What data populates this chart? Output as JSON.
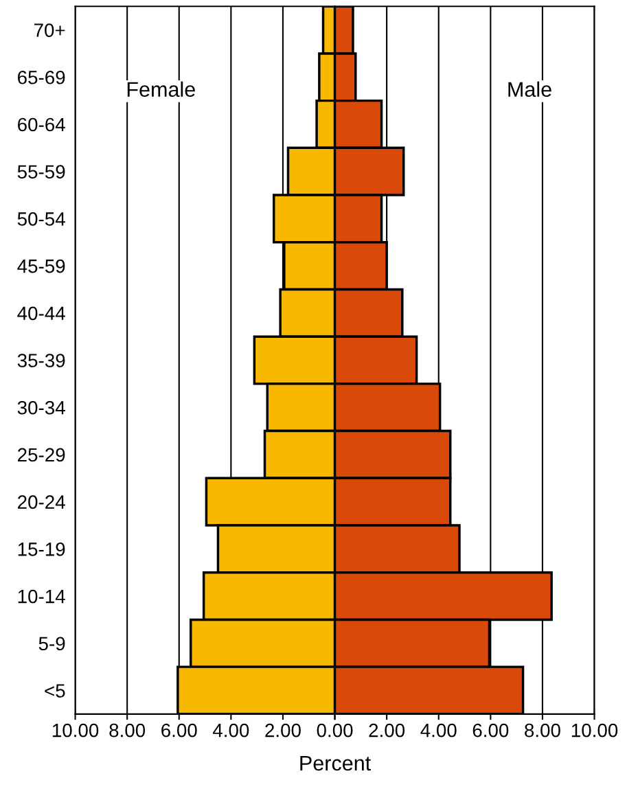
{
  "chart_data": [
    {
      "type": "bar",
      "orientation": "horizontal",
      "xlabel": "Percent",
      "categories": [
        "70+",
        "65-69",
        "60-64",
        "55-59",
        "50-54",
        "45-59",
        "40-44",
        "35-39",
        "30-34",
        "25-29",
        "20-24",
        "15-19",
        "10-14",
        "5-9",
        "<5"
      ],
      "series": [
        {
          "name": "Female",
          "color": "#f9b800",
          "values": [
            0.45,
            0.6,
            0.7,
            1.8,
            2.35,
            1.95,
            2.1,
            3.1,
            2.6,
            2.7,
            4.95,
            4.5,
            5.05,
            5.55,
            6.05
          ]
        }
      ],
      "xlim": [
        10,
        0
      ],
      "xticks": [
        {
          "value": 10,
          "label": "10.00"
        },
        {
          "value": 8,
          "label": "8.00"
        },
        {
          "value": 6,
          "label": "6.00"
        },
        {
          "value": 4,
          "label": "4.00"
        },
        {
          "value": 2,
          "label": "2.00"
        },
        {
          "value": 0,
          "label": null
        }
      ],
      "grid": "x",
      "legend": false
    },
    {
      "type": "bar",
      "orientation": "horizontal",
      "categories": [
        null,
        null,
        null,
        null,
        null,
        null,
        null,
        null,
        null,
        null,
        null,
        null,
        null,
        null,
        null
      ],
      "series": [
        {
          "name": "Male",
          "color": "#d94a0a",
          "values": [
            0.7,
            0.8,
            1.8,
            2.65,
            1.8,
            2.0,
            2.6,
            3.15,
            4.05,
            4.45,
            4.45,
            4.8,
            8.35,
            5.95,
            7.25
          ]
        }
      ],
      "xlim": [
        0,
        10
      ],
      "xticks": [
        {
          "value": 0,
          "label": "0.00"
        },
        {
          "value": 2,
          "label": "2.00"
        },
        {
          "value": 4,
          "label": "4.00"
        },
        {
          "value": 6,
          "label": "6.00"
        },
        {
          "value": 8,
          "label": "8.00"
        },
        {
          "value": 10,
          "label": "10.00"
        }
      ],
      "grid": "x",
      "legend": false,
      "tick_labels": "x"
    }
  ]
}
